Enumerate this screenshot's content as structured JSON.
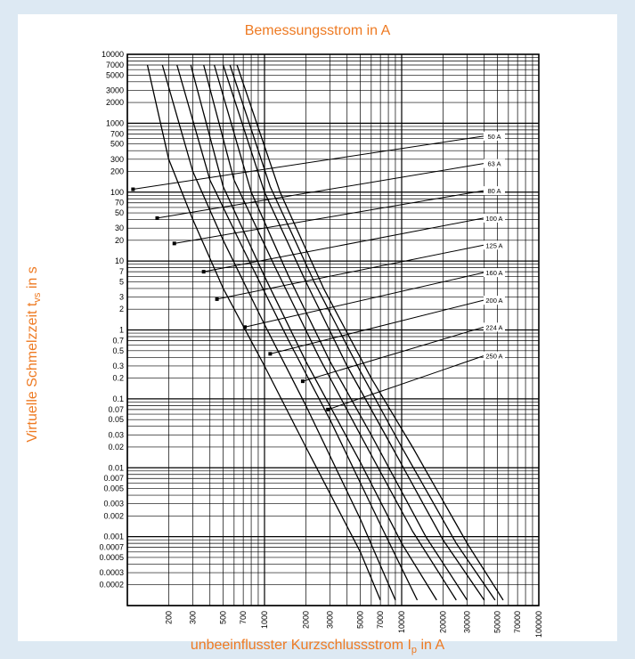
{
  "colors": {
    "frame": "#dde9f3",
    "title": "#ee7a22",
    "grid": "#000000",
    "curve": "#000000"
  },
  "chart_data": {
    "type": "line",
    "title": "Bemessungsstrom in A",
    "xlabel": "unbeeinflusster Kurzschlussstrom I",
    "xlabel_sub": "p",
    "xlabel_suffix": " in A",
    "ylabel": "Virtuelle Schmelzzeit t",
    "ylabel_sub": "vs",
    "ylabel_suffix": " in s",
    "xscale": "log",
    "yscale": "log",
    "xlim": [
      100,
      100000
    ],
    "ylim": [
      0.0001,
      10000
    ],
    "grid": true,
    "x_tick_labels": [
      "200",
      "300",
      "500",
      "700",
      "1000",
      "2000",
      "3000",
      "5000",
      "7000",
      "10000",
      "20000",
      "30000",
      "50000",
      "70000",
      "100000"
    ],
    "y_tick_labels": [
      "10000",
      "7000",
      "5000",
      "3000",
      "2000",
      "1000",
      "700",
      "500",
      "300",
      "200",
      "100",
      "70",
      "50",
      "30",
      "20",
      "10",
      "7",
      "5",
      "3",
      "2",
      "1",
      "0.7",
      "0.5",
      "0.3",
      "0.2",
      "0.1",
      "0.07",
      "0.05",
      "0.03",
      "0.02",
      "0.01",
      "0.007",
      "0.005",
      "0.003",
      "0.002",
      "0.001",
      "0.0007",
      "0.0005",
      "0.0003",
      "0.0002"
    ],
    "series": [
      {
        "name": "50 A",
        "x": [
          140,
          200,
          300,
          500,
          1000,
          2000,
          5000,
          7000
        ],
        "y": [
          7000,
          300,
          40,
          4,
          0.3,
          0.02,
          0.0006,
          0.00012
        ],
        "marker": {
          "x": 110,
          "y": 110
        },
        "label_at": {
          "x": 42000,
          "y": 650
        }
      },
      {
        "name": "63 A",
        "x": [
          180,
          300,
          500,
          1000,
          2000,
          5000,
          9000
        ],
        "y": [
          7000,
          200,
          20,
          1.2,
          0.08,
          0.0018,
          0.00012
        ],
        "marker": {
          "x": 165,
          "y": 42
        },
        "label_at": {
          "x": 42000,
          "y": 260
        }
      },
      {
        "name": "80 A",
        "x": [
          230,
          400,
          700,
          1500,
          3000,
          7000,
          13000
        ],
        "y": [
          7000,
          150,
          15,
          0.7,
          0.05,
          0.0015,
          0.00012
        ],
        "marker": {
          "x": 220,
          "y": 18
        },
        "label_at": {
          "x": 42000,
          "y": 105
        }
      },
      {
        "name": "100 A",
        "x": [
          290,
          500,
          1000,
          2000,
          5000,
          10000,
          18000
        ],
        "y": [
          7000,
          120,
          6,
          0.35,
          0.012,
          0.0008,
          0.00012
        ],
        "marker": {
          "x": 360,
          "y": 7
        },
        "label_at": {
          "x": 42000,
          "y": 42
        }
      },
      {
        "name": "125 A",
        "x": [
          360,
          600,
          1200,
          2500,
          5000,
          12000,
          25000
        ],
        "y": [
          7000,
          150,
          8,
          0.4,
          0.03,
          0.0012,
          0.00012
        ],
        "marker": {
          "x": 450,
          "y": 2.8
        },
        "label_at": {
          "x": 42000,
          "y": 17
        }
      },
      {
        "name": "160 A",
        "x": [
          430,
          800,
          1500,
          3000,
          6000,
          15000,
          30000
        ],
        "y": [
          7000,
          100,
          6,
          0.35,
          0.03,
          0.001,
          0.00012
        ],
        "marker": {
          "x": 720,
          "y": 1.1
        },
        "label_at": {
          "x": 42000,
          "y": 6.8
        }
      },
      {
        "name": "200 A",
        "x": [
          500,
          1000,
          2000,
          4000,
          8000,
          20000,
          40000
        ],
        "y": [
          7000,
          100,
          5,
          0.3,
          0.025,
          0.0009,
          0.00012
        ],
        "marker": {
          "x": 1100,
          "y": 0.45
        },
        "label_at": {
          "x": 42000,
          "y": 2.7
        }
      },
      {
        "name": "224 A",
        "x": [
          560,
          1100,
          2300,
          5000,
          10000,
          25000,
          48000
        ],
        "y": [
          7000,
          120,
          5,
          0.25,
          0.02,
          0.0008,
          0.00012
        ],
        "marker": {
          "x": 1900,
          "y": 0.18
        },
        "label_at": {
          "x": 42000,
          "y": 1.1
        }
      },
      {
        "name": "250 A",
        "x": [
          630,
          1300,
          2700,
          6000,
          12000,
          30000,
          55000
        ],
        "y": [
          7000,
          100,
          4,
          0.2,
          0.02,
          0.0008,
          0.00012
        ],
        "marker": {
          "x": 2900,
          "y": 0.07
        },
        "label_at": {
          "x": 42000,
          "y": 0.42
        }
      }
    ]
  }
}
